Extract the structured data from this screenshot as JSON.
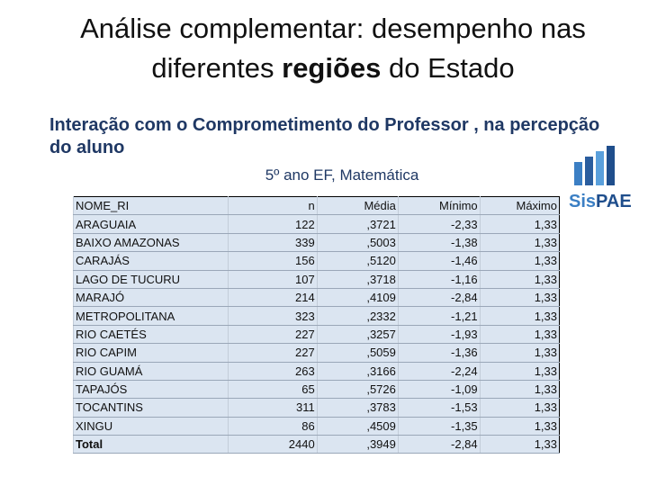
{
  "header": {
    "title_start": "Análise complementar: desempenho nas diferentes",
    "title_bold": "regiões",
    "title_end": "do Estado",
    "subtitle": "Interação com o Comprometimento do Professor , na percepção do aluno",
    "caption": "5º ano EF, Matemática"
  },
  "logo": {
    "text_a": "Sis",
    "text_b": "PAE"
  },
  "table": {
    "columns": [
      "NOME_RI",
      "n",
      "Média",
      "Mínimo",
      "Máximo"
    ],
    "rows": [
      [
        "ARAGUAIA",
        "122",
        ",3721",
        "-2,33",
        "1,33"
      ],
      [
        "BAIXO AMAZONAS",
        "339",
        ",5003",
        "-1,38",
        "1,33"
      ],
      [
        "CARAJÁS",
        "156",
        ",5120",
        "-1,46",
        "1,33"
      ],
      [
        "LAGO DE TUCURU",
        "107",
        ",3718",
        "-1,16",
        "1,33"
      ],
      [
        "MARAJÓ",
        "214",
        ",4109",
        "-2,84",
        "1,33"
      ],
      [
        "METROPOLITANA",
        "323",
        ",2332",
        "-1,21",
        "1,33"
      ],
      [
        "RIO CAETÉS",
        "227",
        ",3257",
        "-1,93",
        "1,33"
      ],
      [
        "RIO CAPIM",
        "227",
        ",5059",
        "-1,36",
        "1,33"
      ],
      [
        "RIO GUAMÁ",
        "263",
        ",3166",
        "-2,24",
        "1,33"
      ],
      [
        "TAPAJÓS",
        "65",
        ",5726",
        "-1,09",
        "1,33"
      ],
      [
        "TOCANTINS",
        "311",
        ",3783",
        "-1,53",
        "1,33"
      ],
      [
        "XINGU",
        "86",
        ",4509",
        "-1,35",
        "1,33"
      ],
      [
        "Total",
        "2440",
        ",3949",
        "-2,84",
        "1,33"
      ]
    ]
  }
}
